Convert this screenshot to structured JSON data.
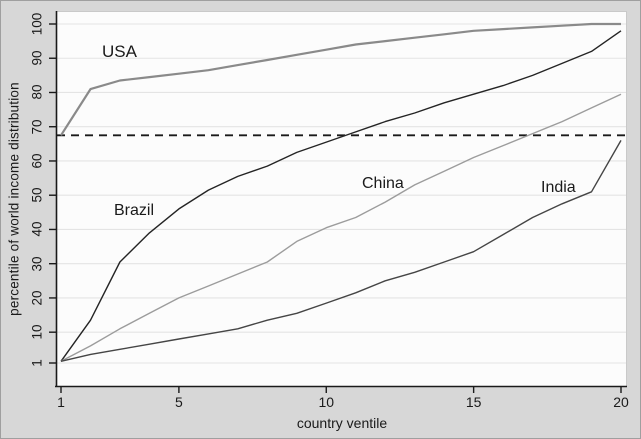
{
  "colors": {
    "figure_background": "#d7d7d7",
    "plot_background": "#fcfcfc",
    "gridline": "#e4e4e4",
    "axis": "#1a1a1a",
    "text": "#1a1a1a"
  },
  "chart_data": {
    "type": "line",
    "title": "",
    "xlabel": "country ventile",
    "ylabel": "percentile of world income distribution",
    "x": [
      1,
      2,
      3,
      4,
      5,
      6,
      7,
      8,
      9,
      10,
      11,
      12,
      13,
      14,
      15,
      16,
      17,
      18,
      19,
      20
    ],
    "x_ticks": [
      1,
      5,
      10,
      15,
      20
    ],
    "y_ticks": [
      1,
      10,
      20,
      30,
      40,
      50,
      60,
      70,
      80,
      90,
      100
    ],
    "xlim": [
      1,
      20
    ],
    "ylim": [
      1,
      100
    ],
    "grid": "horizontal-only",
    "legend_position": "inline-annotations",
    "series": [
      {
        "name": "USA",
        "color": "#8a8a8a",
        "width": 2.2,
        "values": [
          67.5,
          81,
          83.5,
          84.5,
          85.5,
          86.5,
          88,
          89.5,
          91,
          92.5,
          94,
          95,
          96,
          97,
          98,
          98.5,
          99,
          99.5,
          100,
          100
        ]
      },
      {
        "name": "Brazil",
        "color": "#242424",
        "width": 1.4,
        "values": [
          1.5,
          13.5,
          30.5,
          39,
          46,
          51.5,
          55.5,
          58.5,
          62.5,
          65.5,
          68.5,
          71.5,
          74,
          77,
          79.5,
          82,
          85,
          88.5,
          92,
          98
        ]
      },
      {
        "name": "China",
        "color": "#9c9c9c",
        "width": 1.4,
        "values": [
          1.5,
          6,
          11,
          15.5,
          20,
          23.5,
          27,
          30.5,
          36.5,
          40.5,
          43.5,
          48,
          53,
          57,
          61,
          64.5,
          68,
          71.5,
          75.5,
          79.5
        ]
      },
      {
        "name": "India",
        "color": "#454545",
        "width": 1.4,
        "values": [
          1.5,
          3.5,
          5,
          6.5,
          8,
          9.5,
          11,
          13.5,
          15.5,
          18.5,
          21.5,
          25,
          27.5,
          30.5,
          33.5,
          38.5,
          43.5,
          47.5,
          51,
          66
        ]
      }
    ],
    "reference_line": {
      "y": 67.5,
      "style": "dashed",
      "color": "#1a1a1a",
      "width": 1.8
    }
  }
}
